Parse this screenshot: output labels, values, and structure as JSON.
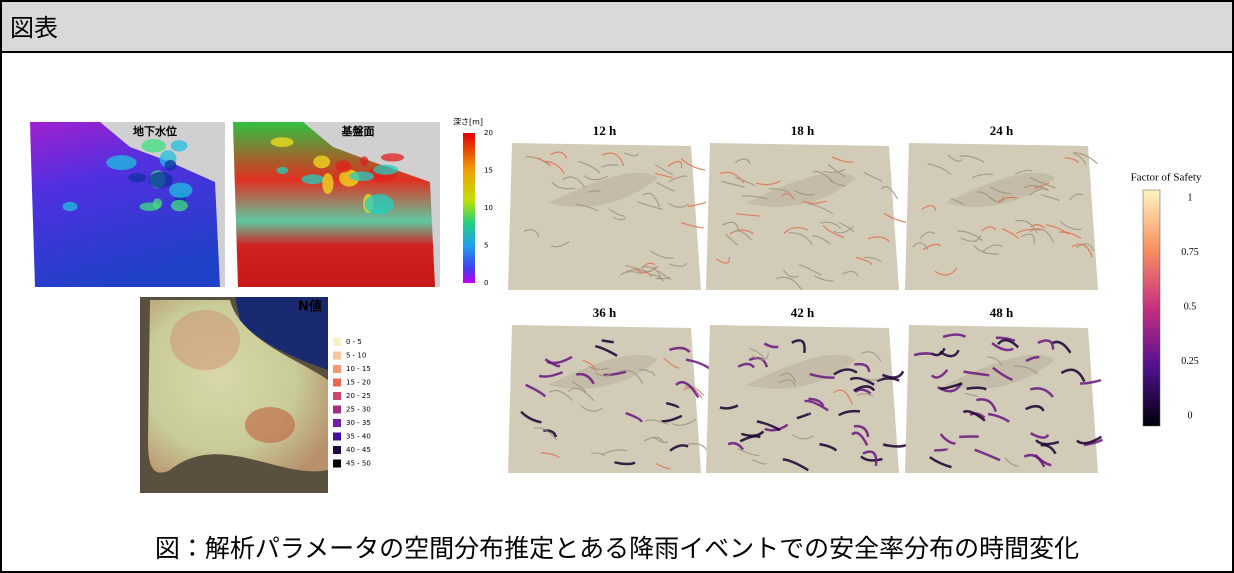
{
  "header": {
    "title": "図表"
  },
  "figure": {
    "maps": [
      "地下水位",
      "基盤面"
    ],
    "depth_legend": {
      "title": "深さ[m]",
      "ticks": [
        "20",
        "15",
        "10",
        "5",
        "0"
      ]
    },
    "n_map": {
      "title": "N値",
      "legend": [
        "0 - 5",
        "5 - 10",
        "10 - 15",
        "15 - 20",
        "20 - 25",
        "25 - 30",
        "30 - 35",
        "35 - 40",
        "40 - 45",
        "45 - 50"
      ]
    },
    "time_panels": [
      "12 h",
      "18 h",
      "24 h",
      "36 h",
      "42 h",
      "48 h"
    ],
    "fos_legend": {
      "title": "Factor of Safety",
      "ticks": [
        "1",
        "0.75",
        "0.5",
        "0.25",
        "0"
      ]
    }
  },
  "caption": "図：解析パラメータの空間分布推定とある降雨イベントでの安全率分布の時間変化"
}
